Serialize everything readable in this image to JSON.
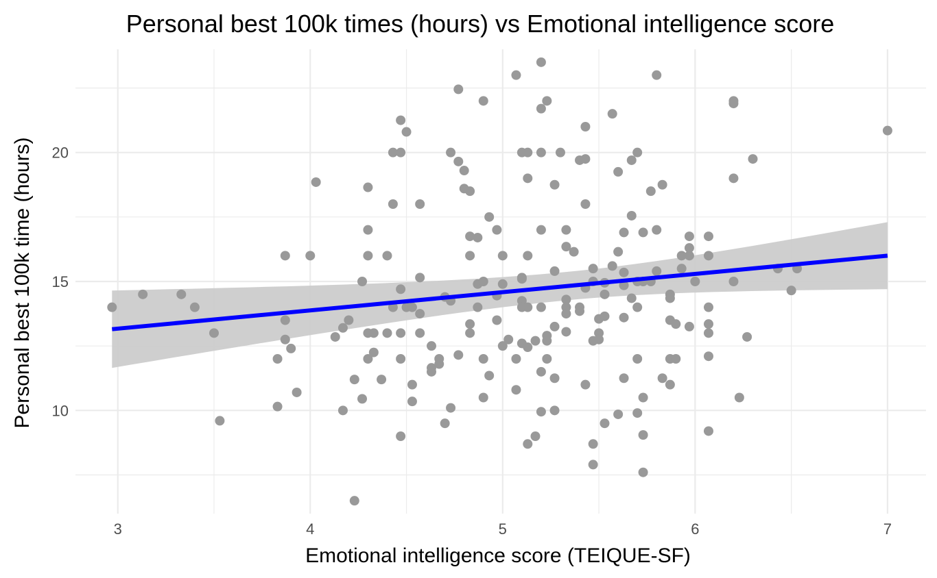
{
  "chart_data": {
    "type": "scatter",
    "title": "Personal best 100k times (hours) vs Emotional intelligence score",
    "xlabel": "Emotional intelligence score (TEIQUE-SF)",
    "ylabel": "Personal best 100k time (hours)",
    "xlim": [
      2.78,
      7.2
    ],
    "ylim": [
      6.0,
      24.0
    ],
    "xticks": [
      3,
      4,
      5,
      6,
      7
    ],
    "xtick_labels": [
      "3",
      "4",
      "5",
      "6",
      "7"
    ],
    "yticks": [
      10,
      15,
      20
    ],
    "ytick_labels": [
      "10",
      "15",
      "20"
    ],
    "grid": true,
    "legend": "none",
    "colors": {
      "points": "#999999",
      "fit_line": "#0000ff",
      "confidence_band": "#cccccc",
      "grid": "#ebebeb"
    },
    "fit": {
      "method": "linear",
      "x": [
        2.97,
        7.0
      ],
      "y": [
        13.15,
        16.0
      ],
      "band_lower": [
        11.65,
        14.7
      ],
      "band_upper": [
        14.65,
        17.3
      ]
    },
    "points": [
      [
        2.97,
        14.0
      ],
      [
        3.13,
        14.5
      ],
      [
        3.33,
        14.5
      ],
      [
        3.4,
        14.0
      ],
      [
        3.5,
        13.0
      ],
      [
        3.53,
        9.6
      ],
      [
        3.83,
        12.0
      ],
      [
        3.83,
        10.15
      ],
      [
        3.87,
        16.0
      ],
      [
        3.87,
        13.5
      ],
      [
        3.87,
        12.75
      ],
      [
        3.9,
        12.4
      ],
      [
        3.93,
        10.7
      ],
      [
        4.0,
        16.0
      ],
      [
        4.03,
        18.85
      ],
      [
        4.13,
        12.85
      ],
      [
        4.17,
        13.2
      ],
      [
        4.17,
        10.0
      ],
      [
        4.2,
        13.5
      ],
      [
        4.23,
        11.2
      ],
      [
        4.23,
        6.5
      ],
      [
        4.27,
        15.0
      ],
      [
        4.27,
        10.45
      ],
      [
        4.3,
        18.65
      ],
      [
        4.3,
        17.0
      ],
      [
        4.3,
        16.0
      ],
      [
        4.3,
        13.0
      ],
      [
        4.3,
        12.0
      ],
      [
        4.33,
        13.0
      ],
      [
        4.33,
        12.25
      ],
      [
        4.37,
        11.2
      ],
      [
        4.4,
        16.0
      ],
      [
        4.4,
        13.0
      ],
      [
        4.43,
        20.0
      ],
      [
        4.43,
        18.0
      ],
      [
        4.43,
        14.0
      ],
      [
        4.47,
        21.25
      ],
      [
        4.47,
        20.0
      ],
      [
        4.47,
        14.7
      ],
      [
        4.47,
        13.0
      ],
      [
        4.47,
        12.0
      ],
      [
        4.47,
        9.0
      ],
      [
        4.5,
        20.8
      ],
      [
        4.5,
        14.0
      ],
      [
        4.53,
        14.0
      ],
      [
        4.53,
        11.0
      ],
      [
        4.53,
        10.35
      ],
      [
        4.57,
        18.0
      ],
      [
        4.57,
        15.15
      ],
      [
        4.57,
        13.75
      ],
      [
        4.57,
        13.0
      ],
      [
        4.63,
        12.5
      ],
      [
        4.63,
        11.65
      ],
      [
        4.63,
        11.5
      ],
      [
        4.67,
        12.0
      ],
      [
        4.67,
        11.8
      ],
      [
        4.7,
        14.4
      ],
      [
        4.7,
        9.5
      ],
      [
        4.73,
        20.0
      ],
      [
        4.73,
        14.25
      ],
      [
        4.73,
        10.1
      ],
      [
        4.77,
        22.45
      ],
      [
        4.77,
        19.65
      ],
      [
        4.77,
        12.15
      ],
      [
        4.8,
        19.3
      ],
      [
        4.8,
        18.6
      ],
      [
        4.83,
        18.5
      ],
      [
        4.83,
        16.75
      ],
      [
        4.83,
        16.0
      ],
      [
        4.83,
        13.35
      ],
      [
        4.83,
        13.0
      ],
      [
        4.87,
        16.7
      ],
      [
        4.87,
        14.9
      ],
      [
        4.87,
        14.0
      ],
      [
        4.9,
        22.0
      ],
      [
        4.9,
        15.0
      ],
      [
        4.9,
        12.0
      ],
      [
        4.9,
        10.5
      ],
      [
        4.93,
        17.5
      ],
      [
        4.93,
        11.35
      ],
      [
        4.97,
        17.0
      ],
      [
        4.97,
        14.45
      ],
      [
        4.97,
        13.5
      ],
      [
        5.0,
        16.0
      ],
      [
        5.0,
        14.9
      ],
      [
        5.0,
        12.5
      ],
      [
        5.03,
        12.75
      ],
      [
        5.07,
        23.0
      ],
      [
        5.07,
        12.0
      ],
      [
        5.07,
        10.8
      ],
      [
        5.1,
        20.0
      ],
      [
        5.1,
        15.15
      ],
      [
        5.1,
        15.1
      ],
      [
        5.1,
        14.25
      ],
      [
        5.1,
        14.0
      ],
      [
        5.1,
        12.6
      ],
      [
        5.13,
        20.0
      ],
      [
        5.13,
        19.0
      ],
      [
        5.13,
        16.0
      ],
      [
        5.13,
        14.0
      ],
      [
        5.13,
        12.45
      ],
      [
        5.13,
        8.7
      ],
      [
        5.17,
        12.7
      ],
      [
        5.17,
        9.0
      ],
      [
        5.2,
        23.5
      ],
      [
        5.2,
        21.7
      ],
      [
        5.2,
        20.0
      ],
      [
        5.2,
        17.0
      ],
      [
        5.2,
        14.0
      ],
      [
        5.2,
        11.5
      ],
      [
        5.2,
        9.95
      ],
      [
        5.23,
        22.0
      ],
      [
        5.23,
        12.9
      ],
      [
        5.23,
        12.7
      ],
      [
        5.23,
        12.0
      ],
      [
        5.27,
        18.75
      ],
      [
        5.27,
        15.4
      ],
      [
        5.27,
        13.25
      ],
      [
        5.27,
        11.25
      ],
      [
        5.27,
        10.0
      ],
      [
        5.3,
        20.0
      ],
      [
        5.33,
        17.0
      ],
      [
        5.33,
        16.35
      ],
      [
        5.33,
        14.3
      ],
      [
        5.33,
        14.0
      ],
      [
        5.33,
        13.75
      ],
      [
        5.33,
        13.05
      ],
      [
        5.37,
        16.15
      ],
      [
        5.4,
        19.7
      ],
      [
        5.4,
        14.0
      ],
      [
        5.4,
        13.85
      ],
      [
        5.43,
        21.0
      ],
      [
        5.43,
        19.75
      ],
      [
        5.43,
        18.0
      ],
      [
        5.43,
        14.75
      ],
      [
        5.43,
        11.0
      ],
      [
        5.47,
        15.5
      ],
      [
        5.47,
        15.0
      ],
      [
        5.47,
        12.7
      ],
      [
        5.47,
        8.7
      ],
      [
        5.47,
        7.9
      ],
      [
        5.5,
        13.55
      ],
      [
        5.5,
        13.0
      ],
      [
        5.5,
        12.75
      ],
      [
        5.53,
        14.95
      ],
      [
        5.53,
        14.5
      ],
      [
        5.53,
        13.65
      ],
      [
        5.53,
        9.5
      ],
      [
        5.57,
        21.5
      ],
      [
        5.57,
        15.6
      ],
      [
        5.6,
        19.25
      ],
      [
        5.6,
        16.15
      ],
      [
        5.6,
        9.85
      ],
      [
        5.63,
        16.9
      ],
      [
        5.63,
        15.35
      ],
      [
        5.63,
        14.85
      ],
      [
        5.63,
        13.6
      ],
      [
        5.63,
        11.25
      ],
      [
        5.67,
        19.7
      ],
      [
        5.67,
        17.55
      ],
      [
        5.67,
        14.35
      ],
      [
        5.7,
        20.0
      ],
      [
        5.7,
        15.0
      ],
      [
        5.7,
        14.0
      ],
      [
        5.7,
        12.0
      ],
      [
        5.7,
        9.9
      ],
      [
        5.73,
        16.9
      ],
      [
        5.73,
        15.0
      ],
      [
        5.73,
        10.5
      ],
      [
        5.73,
        9.05
      ],
      [
        5.73,
        7.6
      ],
      [
        5.77,
        18.5
      ],
      [
        5.77,
        15.0
      ],
      [
        5.8,
        23.0
      ],
      [
        5.8,
        17.0
      ],
      [
        5.8,
        15.4
      ],
      [
        5.83,
        18.75
      ],
      [
        5.83,
        11.25
      ],
      [
        5.87,
        14.5
      ],
      [
        5.87,
        14.35
      ],
      [
        5.87,
        13.5
      ],
      [
        5.87,
        12.0
      ],
      [
        5.87,
        11.0
      ],
      [
        5.9,
        13.35
      ],
      [
        5.9,
        12.0
      ],
      [
        5.93,
        16.0
      ],
      [
        5.93,
        15.5
      ],
      [
        5.97,
        16.75
      ],
      [
        5.97,
        16.3
      ],
      [
        5.97,
        16.0
      ],
      [
        5.97,
        13.25
      ],
      [
        6.0,
        15.0
      ],
      [
        6.07,
        16.75
      ],
      [
        6.07,
        16.0
      ],
      [
        6.07,
        14.0
      ],
      [
        6.07,
        13.35
      ],
      [
        6.07,
        13.0
      ],
      [
        6.07,
        12.1
      ],
      [
        6.07,
        9.2
      ],
      [
        6.2,
        22.0
      ],
      [
        6.2,
        21.9
      ],
      [
        6.2,
        19.0
      ],
      [
        6.2,
        15.0
      ],
      [
        6.23,
        10.5
      ],
      [
        6.27,
        12.85
      ],
      [
        6.3,
        19.75
      ],
      [
        6.43,
        15.5
      ],
      [
        6.5,
        14.65
      ],
      [
        6.53,
        15.5
      ],
      [
        7.0,
        20.85
      ]
    ]
  }
}
